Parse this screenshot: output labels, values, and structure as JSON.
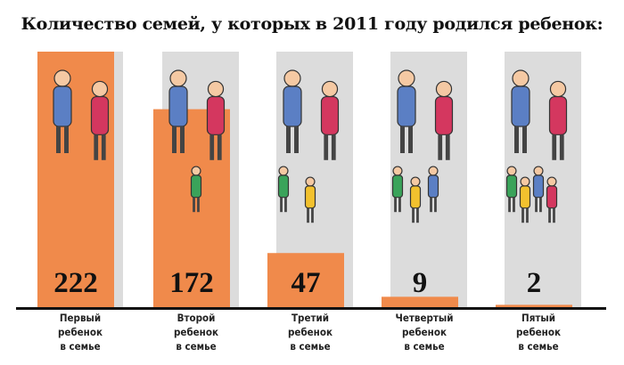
{
  "title": "Количество семей, у которых в 2011 году родился ребенок:",
  "chart_data": {
    "type": "bar",
    "title": "Количество семей, у которых в 2011 году родился ребенок:",
    "categories": [
      "Первый ребенок в семье",
      "Второй ребенок в семье",
      "Третий ребенок в семье",
      "Четвертый ребенок в семье",
      "Пятый ребенок в семье"
    ],
    "category_lines": [
      [
        "Первый",
        "ребенок",
        "в семье"
      ],
      [
        "Второй",
        "ребенок",
        "в семье"
      ],
      [
        "Третий",
        "ребенок",
        "в семье"
      ],
      [
        "Четвертый",
        "ребенок",
        "в семье"
      ],
      [
        "Пятый",
        "ребенок",
        "в семье"
      ]
    ],
    "values": [
      222,
      172,
      47,
      9,
      2
    ],
    "value_labels": [
      "222",
      "172",
      "47",
      "9",
      "2"
    ],
    "ylim": [
      0,
      222
    ],
    "grid": false,
    "colors": {
      "bar": "#f08a4b",
      "background_column": "#dcdcdc",
      "axis": "#111111"
    }
  }
}
